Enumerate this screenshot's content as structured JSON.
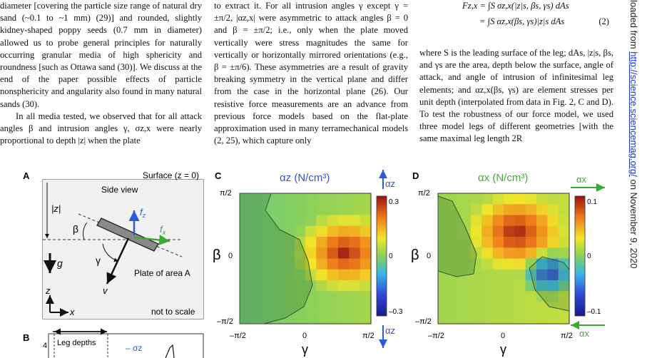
{
  "column1": {
    "paragraph1": "diameter [covering the particle size range of natural dry sand (~0.1 to ~1 mm) (29)] and rounded, slightly kidney-shaped poppy seeds (0.7 mm in diameter) allowed us to probe general principles for naturally occurring granular media of high sphericity and roundness [such as Ottawa sand (30)]. We discuss at the end of the paper possible effects of particle nonsphericity and angularity also found in many natural sands (30).",
    "paragraph2": "In all media tested, we observed that for all attack angles β and intrusion angles γ, σz,x were nearly proportional to depth |z| when the plate"
  },
  "column2": {
    "paragraph1": "to extract it. For all intrusion angles γ except γ = ±π/2, |αz,x| were asymmetric to attack angles β = 0 and β = ±π/2; i.e., only when the plate moved vertically were stress magnitudes the same for vertically or horizontally mirrored orientations (e.g., β = ±π/6). These asymmetries are a result of gravity breaking symmetry in the vertical plane and differ from the case in the horizontal plane (26). Our resistive force measurements are an advance from previous force models based on the flat-plate approximation used in many terramechanical models (2, 25), which capture only"
  },
  "column3": {
    "equation_line1": "Fz,x = ∫S σz,x(|z|s, βs, γs) dAs",
    "equation_line2": "= ∫S αz,x(βs, γs)|z|s dAs",
    "equation_number": "(2)",
    "paragraph1": "where S is the leading surface of the leg; dAs, |z|s, βs, and γs are the area, depth below the surface, angle of attack, and angle of intrusion of infinitesimal leg elements; and αz,x(βs, γs) are element stresses per unit depth (interpolated from data in Fig. 2, C and D). To test the robustness of our force model, we used three model legs of different geometries [with the same maximal leg length 2R"
  },
  "sidebar": {
    "prefix": "loaded from ",
    "link": "http://science.sciencemag.org/",
    "suffix": " on November 9, 2020"
  },
  "figure": {
    "panelA": {
      "label": "A",
      "surface": "Surface (z = 0)",
      "side_view": "Side view",
      "depth": "|z|",
      "beta": "β",
      "gamma": "γ",
      "g": "g",
      "v": "v",
      "fz": "f",
      "fz_sub": "z",
      "fx": "f",
      "fx_sub": "x",
      "plate": "Plate of area A",
      "axis_z": "z",
      "axis_x": "x",
      "scale": "not to scale"
    },
    "panelB": {
      "label": "B",
      "tick4": "4",
      "legdepths": "Leg depths",
      "legend": "– σz"
    },
    "panelC": {
      "label": "C",
      "title": "αz (N/cm³)",
      "ytick_top": "π/2",
      "ytick_mid": "0",
      "ytick_bot": "–π/2",
      "xtick_left": "–π/2",
      "xtick_mid": "0",
      "xtick_right": "π/2",
      "xlabel": "γ",
      "ylabel": "β",
      "cb_top": "0.3",
      "cb_mid": "0",
      "cb_bot": "–0.3",
      "axis_name": "αz"
    },
    "panelD": {
      "label": "D",
      "title": "αx (N/cm³)",
      "ytick_top": "π/2",
      "ytick_mid": "0",
      "ytick_bot": "–π/2",
      "xtick_left": "–π/2",
      "xtick_mid": "0",
      "xtick_right": "π/2",
      "xlabel": "γ",
      "ylabel": "β",
      "cb_top": "0.1",
      "cb_mid": "0",
      "cb_bot": "–0.1",
      "axis_name": "αx"
    }
  },
  "colors": {
    "alpha_z_title": "#3a4fc0",
    "alpha_x_title": "#4aa83a",
    "fz_arrow": "#2a5bd8",
    "fx_arrow": "#3aa832"
  }
}
